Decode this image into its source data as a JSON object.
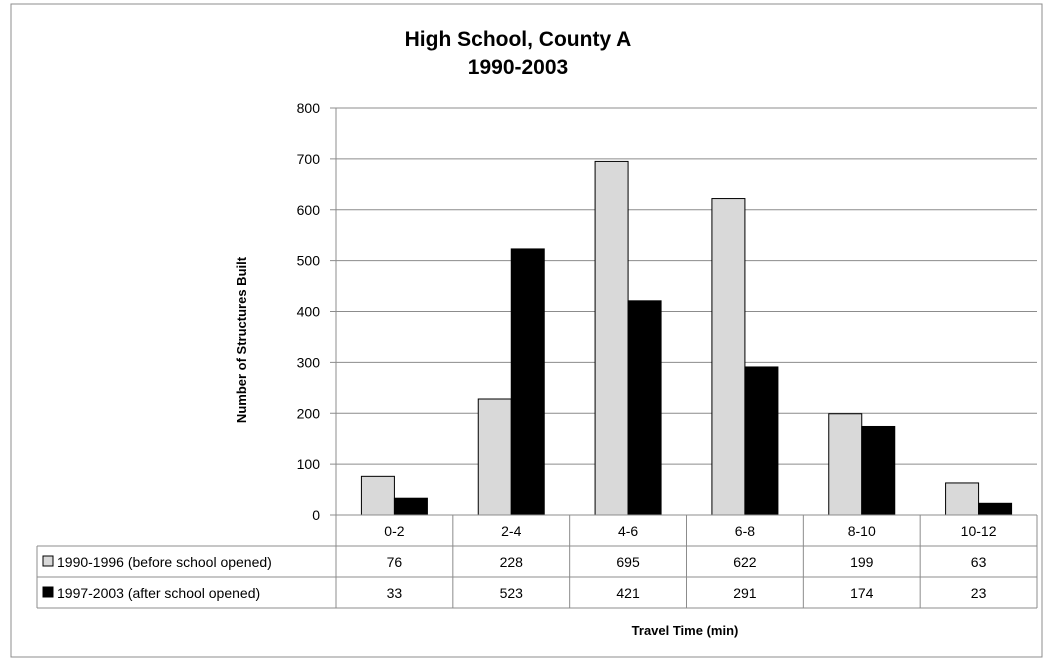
{
  "chart_data": {
    "type": "bar",
    "title": "High School, County A",
    "subtitle": "1990-2003",
    "xlabel": "Travel Time  (min)",
    "ylabel": "Number  of Structures Built",
    "ylim": [
      0,
      800
    ],
    "yticks": [
      0,
      100,
      200,
      300,
      400,
      500,
      600,
      700,
      800
    ],
    "grid": true,
    "legend": "data-table",
    "categories": [
      "0-2",
      "2-4",
      "4-6",
      "6-8",
      "8-10",
      "10-12"
    ],
    "series": [
      {
        "name": "1990-1996 (before school opened)",
        "color": "#d9d9d9",
        "values": [
          76,
          228,
          695,
          622,
          199,
          63
        ]
      },
      {
        "name": "1997-2003 (after school opened)",
        "color": "#000000",
        "values": [
          33,
          523,
          421,
          291,
          174,
          23
        ]
      }
    ]
  }
}
